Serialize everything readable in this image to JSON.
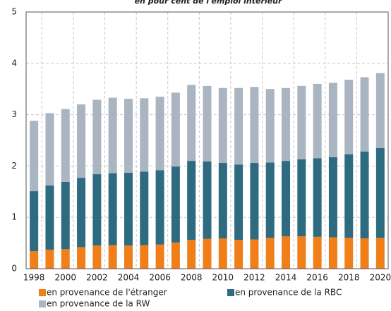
{
  "chart_data": {
    "type": "stacked_bar",
    "title": "en pour cent de l'emploi intérieur",
    "categories": [
      "1998",
      null,
      "2000",
      null,
      "2002",
      null,
      "2004",
      null,
      "2006",
      null,
      "2008",
      null,
      "2010",
      null,
      "2012",
      null,
      "2014",
      null,
      "2016",
      null,
      "2018",
      null,
      "2020"
    ],
    "series": [
      {
        "name": "en provenance de l'étranger",
        "color": "#f07f1a",
        "values": [
          0.34,
          0.37,
          0.38,
          0.42,
          0.45,
          0.46,
          0.45,
          0.46,
          0.47,
          0.51,
          0.56,
          0.58,
          0.59,
          0.56,
          0.57,
          0.6,
          0.63,
          0.63,
          0.62,
          0.61,
          0.6,
          0.59,
          0.6
        ]
      },
      {
        "name": "en provenance de la RBC",
        "color": "#2e6a80",
        "values": [
          1.17,
          1.25,
          1.31,
          1.35,
          1.39,
          1.4,
          1.42,
          1.43,
          1.45,
          1.48,
          1.54,
          1.51,
          1.47,
          1.47,
          1.49,
          1.47,
          1.47,
          1.5,
          1.53,
          1.56,
          1.63,
          1.69,
          1.75
        ]
      },
      {
        "name": "en provenance de la RW",
        "color": "#a9b5c1",
        "values": [
          1.37,
          1.41,
          1.42,
          1.43,
          1.45,
          1.47,
          1.44,
          1.43,
          1.43,
          1.44,
          1.48,
          1.47,
          1.46,
          1.49,
          1.48,
          1.43,
          1.42,
          1.43,
          1.45,
          1.45,
          1.45,
          1.45,
          1.46
        ]
      }
    ],
    "ylim": [
      0,
      5
    ],
    "yticks": [
      0,
      1,
      2,
      3,
      4,
      5
    ],
    "grid": true
  }
}
